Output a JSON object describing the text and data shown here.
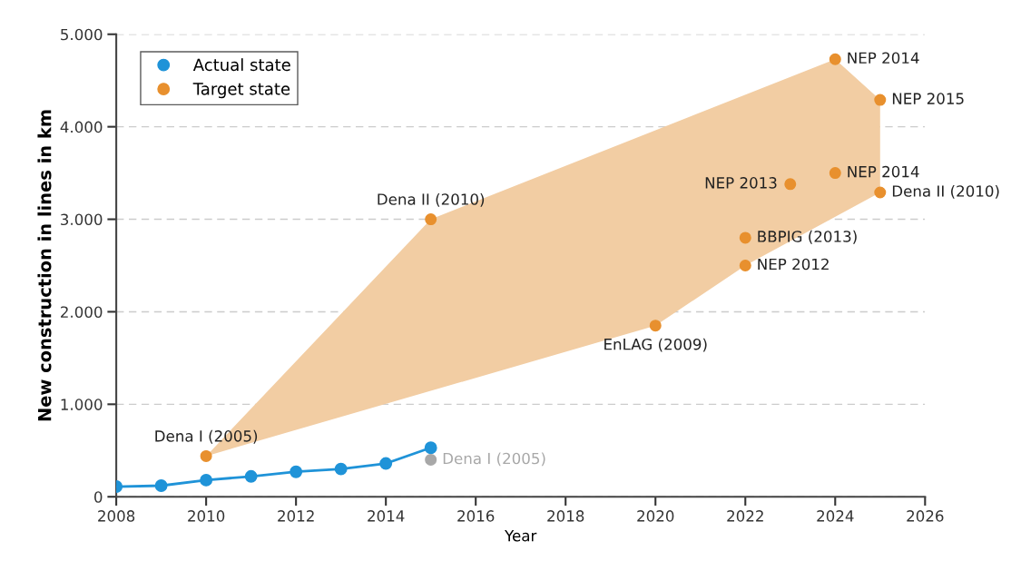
{
  "chart_data": {
    "type": "scatter",
    "xlabel": "Year",
    "ylabel": "New construction in lines in km",
    "xlim": [
      2008,
      2026
    ],
    "xticks": [
      2008,
      2010,
      2012,
      2014,
      2016,
      2018,
      2020,
      2022,
      2024,
      2026
    ],
    "ylim": [
      0,
      5000
    ],
    "yticks": [
      0,
      {
        "value": 1000,
        "label": "1.000"
      },
      {
        "value": 2000,
        "label": "2.000"
      },
      {
        "value": 3000,
        "label": "3.000"
      },
      {
        "value": 4000,
        "label": "4.000"
      },
      {
        "value": 5000,
        "label": "5.000"
      }
    ],
    "grid": "y",
    "legend": "top left",
    "marker": "circle",
    "series": [
      {
        "type": "area",
        "marker": "none",
        "color": "#f2cda3",
        "x": [
          2010,
          2015,
          2024,
          2025,
          2025,
          2022,
          2020,
          2010
        ],
        "values": [
          440,
          3000,
          4730,
          4290,
          3290,
          2500,
          1850,
          440
        ]
      },
      {
        "type": "line",
        "name": "Actual state",
        "color": "#1f93d8",
        "x": [
          2008,
          2009,
          2010,
          2011,
          2012,
          2013,
          2014,
          2015
        ],
        "values": [
          110,
          120,
          180,
          220,
          270,
          300,
          360,
          530
        ]
      },
      {
        "name": "Target state",
        "color": "#e8902e",
        "x": [
          2010,
          2015,
          2020,
          2022,
          2022,
          2023,
          2024,
          2024,
          2025,
          2025
        ],
        "values": [
          440,
          3000,
          1850,
          2500,
          2800,
          3380,
          3500,
          4730,
          4290,
          3290
        ]
      },
      {
        "color": "#a8a8a8",
        "x": [
          2015
        ],
        "values": [
          400
        ]
      }
    ],
    "annotations": [
      {
        "text": "Dena I (2005)",
        "x": 2010,
        "y": 440
      },
      {
        "text": "Dena II (2010)",
        "x": 2015,
        "y": 3000
      },
      {
        "text": "EnLAG (2009)",
        "x": 2020,
        "y": 1850
      },
      {
        "text": "NEP 2012",
        "x": 2022,
        "y": 2500
      },
      {
        "text": "BBPIG (2013)",
        "x": 2022,
        "y": 2800
      },
      {
        "text": "NEP 2013",
        "x": 2023,
        "y": 3380
      },
      {
        "text": "NEP 2014",
        "x": 2024,
        "y": 3500
      },
      {
        "text": "NEP 2014",
        "x": 2024,
        "y": 4730
      },
      {
        "text": "NEP 2015",
        "x": 2025,
        "y": 4290
      },
      {
        "text": "Dena II (2010)",
        "x": 2025,
        "y": 3290
      },
      {
        "text": "Dena I (2005)",
        "x": 2015,
        "y": 400
      }
    ]
  }
}
